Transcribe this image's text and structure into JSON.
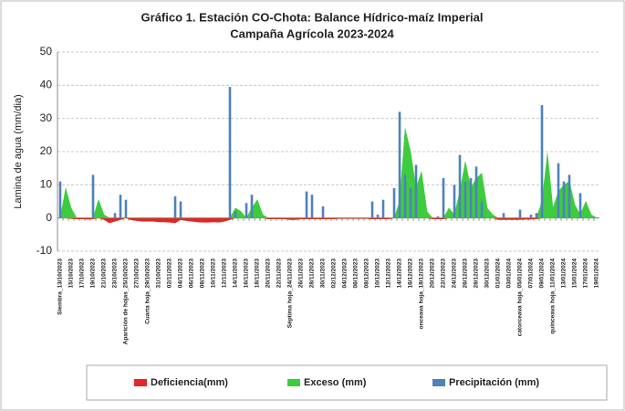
{
  "chart_data": {
    "type": "bar-area",
    "title": "Gráfico 1. Estación CO-Chota: Balance Hídrico-maíz Imperial",
    "subtitle": "Campaña Agrícola 2023-2024",
    "ylabel": "Lamina de agua (mm/dia)",
    "ylim": [
      -10,
      50
    ],
    "yticks": [
      -10,
      0,
      10,
      20,
      30,
      40,
      50
    ],
    "grid": true,
    "legend": "bottom",
    "categories": [
      "Siembra_13/10/2023",
      null,
      "15/10/2023",
      null,
      "17/10/2023",
      null,
      "19/10/2023",
      null,
      "21/10/2023",
      null,
      "23/10/2023",
      null,
      "Aparición de hojas_25/10/2023",
      null,
      "27/10/2023",
      null,
      "Cuarta hoja_29/10/2023",
      null,
      "31/10/2023",
      null,
      "02/11/2023",
      null,
      "04/11/2023",
      null,
      "06/11/2023",
      null,
      "08/11/2023",
      null,
      "10/11/2023",
      null,
      "12/11/2023",
      null,
      "14/11/2023",
      null,
      "16/11/2023",
      null,
      "18/11/2023",
      null,
      "20/11/2023",
      null,
      "22/11/2023",
      null,
      "Séptima hoja_24/11/2023",
      null,
      "26/11/2023",
      null,
      "28/11/2023",
      null,
      "30/11/2023",
      null,
      "02/12/2023",
      null,
      "04/12/2023",
      null,
      "06/12/2023",
      null,
      "08/12/2023",
      null,
      "10/12/2023",
      null,
      "12/12/2023",
      null,
      "14/12/2023",
      null,
      "16/12/2023",
      null,
      "onceava hoja_18/12/2023",
      null,
      "20/12/2023",
      null,
      "22/12/2023",
      null,
      "24/12/2023",
      null,
      "26/12/2023",
      null,
      "28/12/2023",
      null,
      "30/12/2023",
      null,
      "01/01/2024",
      null,
      "03/01/2024",
      null,
      "catorceava hoja_05/01/2024",
      null,
      "07/01/2024",
      null,
      "09/01/2024",
      null,
      "quinceava hoja_11/01/2024",
      null,
      "13/01/2024",
      null,
      "15/01/2024",
      null,
      "17/01/2024",
      null,
      "19/01/2024"
    ],
    "series": [
      {
        "name": "Deficiencia(mm)",
        "kind": "area",
        "color": "#e3262a",
        "values": [
          0,
          0,
          -0.2,
          -0.3,
          -0.3,
          -0.4,
          -0.3,
          0,
          -0.5,
          -1.5,
          -1,
          -0.5,
          0,
          -0.6,
          -0.8,
          -1,
          -1,
          -1,
          -1.2,
          -1.2,
          -1.3,
          -1.5,
          -0.5,
          -0.8,
          -1,
          -1.2,
          -1.3,
          -1.3,
          -1.2,
          -1.3,
          -1,
          -0.5,
          0,
          0,
          0,
          0,
          0,
          0,
          -0.3,
          -0.3,
          -0.3,
          -0.3,
          -0.5,
          -0.5,
          -0.3,
          -0.3,
          -0.3,
          -0.3,
          -0.3,
          -0.3,
          -0.3,
          -0.2,
          -0.2,
          -0.2,
          -0.2,
          -0.2,
          -0.2,
          -0.3,
          -0.3,
          -0.3,
          -0.3,
          0,
          0,
          0,
          0,
          0,
          0,
          0,
          -0.3,
          -0.3,
          -0.3,
          0,
          0,
          0,
          0,
          0,
          0,
          0,
          0,
          0,
          -0.5,
          -0.5,
          -0.5,
          -0.5,
          -0.5,
          -0.4,
          -0.4,
          -0.3,
          0,
          0,
          0,
          0,
          0,
          0,
          0,
          0,
          0,
          0,
          0
        ]
      },
      {
        "name": "Exceso (mm)",
        "kind": "area",
        "color": "#3dcc3d",
        "values": [
          0,
          9,
          3,
          0,
          0,
          0,
          0,
          5.5,
          1,
          0,
          0,
          0,
          0,
          0,
          0,
          0,
          0,
          0,
          0,
          0,
          0,
          0,
          0,
          0,
          0,
          0,
          0,
          0,
          0,
          0,
          0,
          0,
          3,
          2,
          0,
          3,
          5.5,
          1,
          0,
          0,
          0,
          0,
          0,
          0,
          0,
          0,
          0,
          0,
          0,
          0,
          0,
          0,
          0,
          0,
          0,
          0,
          0,
          0,
          0,
          0,
          0,
          0,
          5,
          27,
          20,
          9,
          14,
          2,
          0,
          0,
          0,
          3,
          1,
          8,
          17,
          9,
          12,
          13.5,
          3,
          1,
          0,
          0,
          0,
          0,
          0,
          0,
          0,
          0,
          5,
          19.5,
          3,
          8,
          10,
          11,
          4,
          1,
          5,
          1,
          0
        ]
      },
      {
        "name": "Precipitación (mm)",
        "kind": "bar",
        "color": "#4f81bd",
        "values": [
          11,
          0,
          0,
          0,
          0,
          0,
          13,
          0,
          0,
          0,
          1.5,
          7,
          5.5,
          0,
          0,
          0,
          0,
          0,
          0,
          0,
          0,
          6.5,
          5,
          0,
          0,
          0,
          0,
          0,
          0,
          0,
          0,
          39.5,
          2,
          0,
          4.5,
          7,
          0,
          0,
          0,
          0,
          0,
          0,
          0,
          0,
          0,
          8,
          7,
          0,
          3.5,
          0,
          0,
          0,
          0,
          0,
          0,
          0,
          0,
          5,
          1,
          5.5,
          0,
          9,
          32,
          13,
          9,
          16,
          0,
          0,
          0,
          0.5,
          12,
          0,
          10,
          19,
          11,
          12,
          15.5,
          5,
          0,
          0,
          0,
          1.5,
          0,
          0,
          2.5,
          0,
          1,
          1.5,
          34,
          0,
          0,
          16.5,
          11,
          13,
          0,
          7.5,
          0,
          0,
          0
        ]
      }
    ]
  }
}
